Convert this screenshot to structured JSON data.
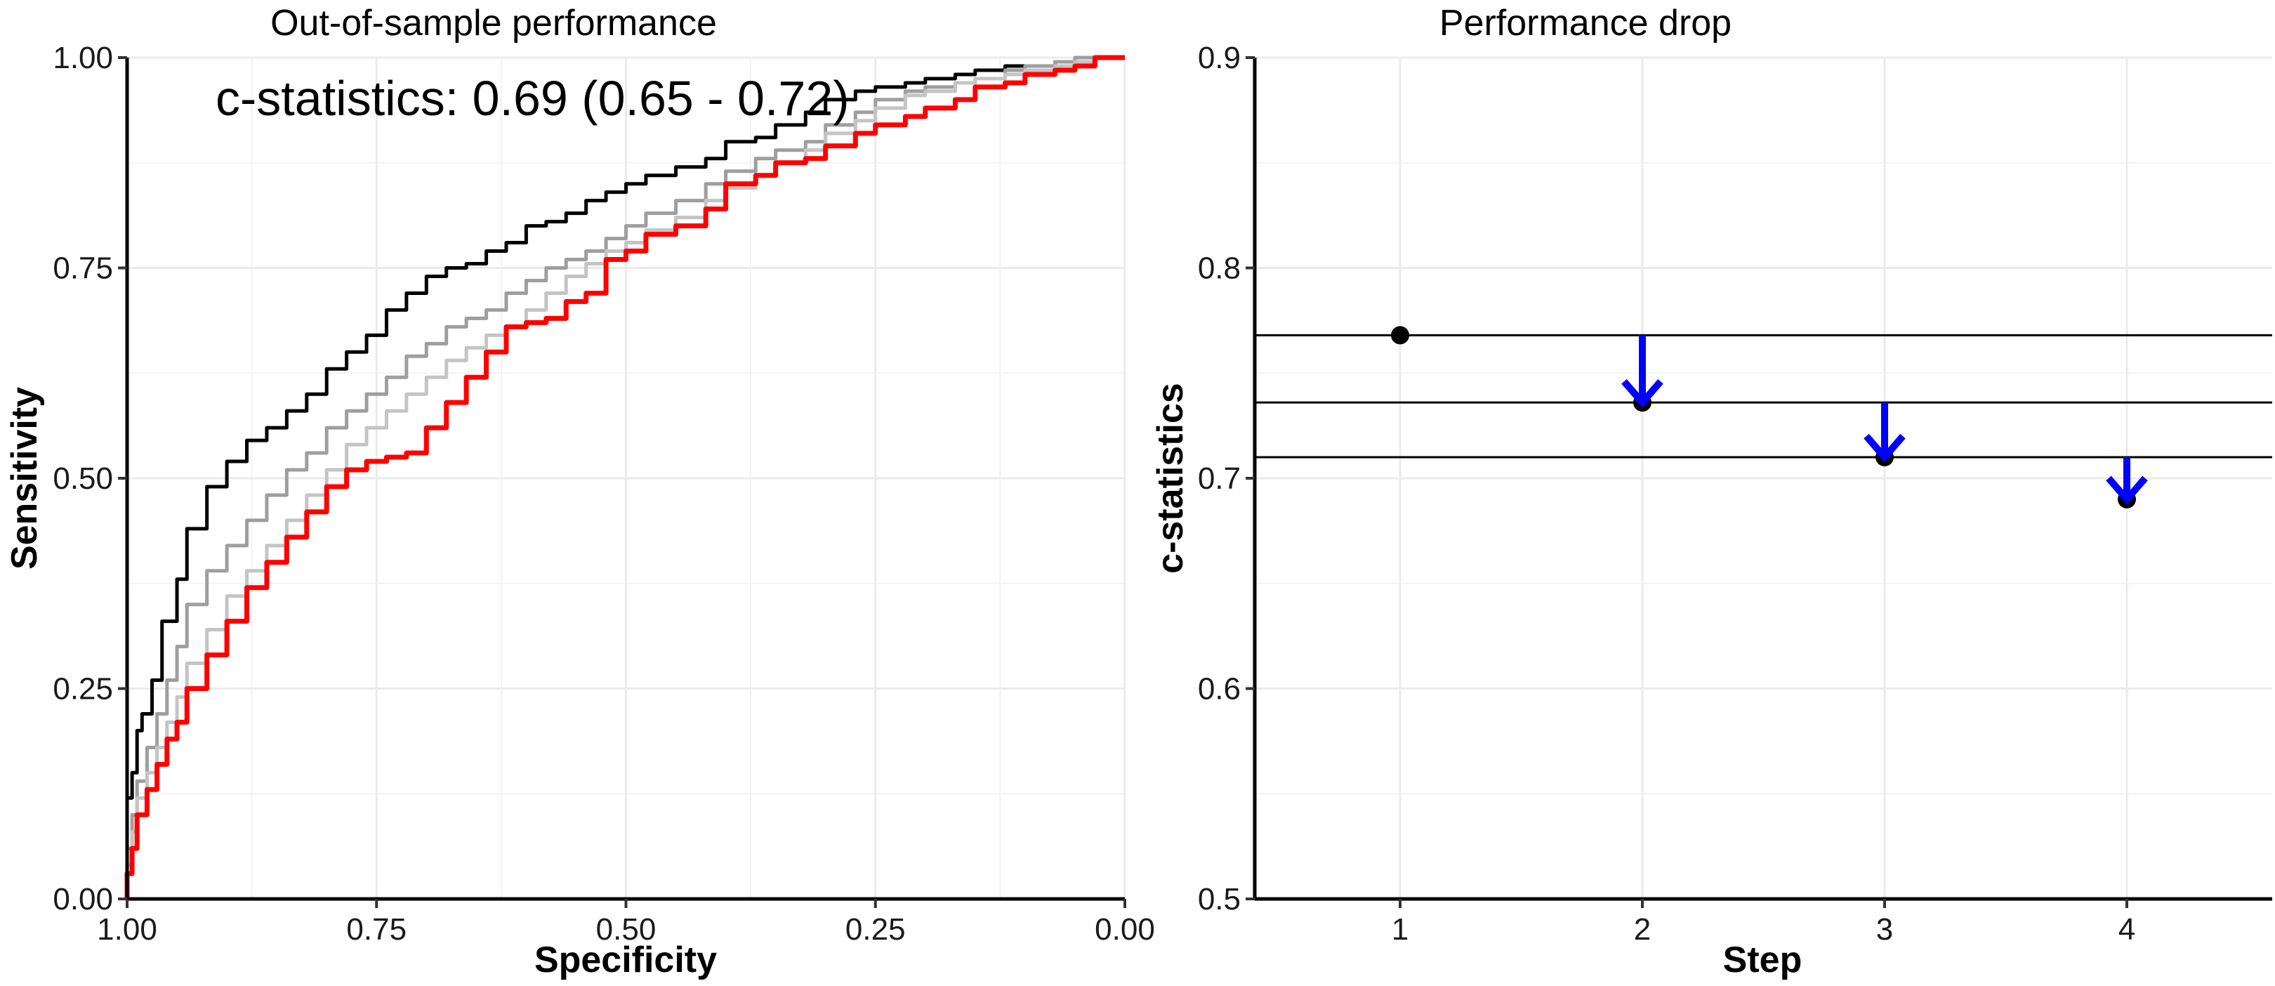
{
  "chart_data": [
    {
      "type": "line",
      "title": "Out-of-sample performance",
      "xlabel": "Specificity",
      "ylabel": "Sensitivity",
      "x_reversed": true,
      "xlim": [
        1.0,
        0.0
      ],
      "ylim": [
        0.0,
        1.0
      ],
      "x_ticks": [
        "1.00",
        "0.75",
        "0.50",
        "0.25",
        "0.00"
      ],
      "y_ticks": [
        "0.00",
        "0.25",
        "0.50",
        "0.75",
        "1.00"
      ],
      "annotation": "c-statistics: 0.69 (0.65 - 0.72)",
      "grid": true,
      "series": [
        {
          "color": "#000000",
          "x": [
            1.0,
            0.995,
            0.99,
            0.985,
            0.975,
            0.965,
            0.95,
            0.94,
            0.92,
            0.9,
            0.88,
            0.86,
            0.84,
            0.82,
            0.8,
            0.78,
            0.76,
            0.74,
            0.72,
            0.7,
            0.68,
            0.66,
            0.64,
            0.62,
            0.6,
            0.58,
            0.56,
            0.54,
            0.52,
            0.5,
            0.48,
            0.45,
            0.42,
            0.4,
            0.37,
            0.35,
            0.32,
            0.3,
            0.27,
            0.25,
            0.22,
            0.2,
            0.17,
            0.15,
            0.12,
            0.1,
            0.07,
            0.05,
            0.03,
            0.0
          ],
          "y": [
            0.0,
            0.12,
            0.15,
            0.2,
            0.22,
            0.26,
            0.33,
            0.38,
            0.44,
            0.49,
            0.52,
            0.545,
            0.56,
            0.58,
            0.6,
            0.63,
            0.65,
            0.67,
            0.7,
            0.72,
            0.74,
            0.75,
            0.755,
            0.77,
            0.78,
            0.8,
            0.805,
            0.815,
            0.83,
            0.84,
            0.85,
            0.86,
            0.87,
            0.88,
            0.9,
            0.905,
            0.92,
            0.935,
            0.95,
            0.96,
            0.965,
            0.97,
            0.975,
            0.98,
            0.985,
            0.99,
            0.99,
            0.995,
            0.995,
            1.0
          ]
        },
        {
          "color": "#9e9e9e",
          "x": [
            1.0,
            0.995,
            0.99,
            0.98,
            0.97,
            0.96,
            0.95,
            0.94,
            0.92,
            0.9,
            0.88,
            0.86,
            0.84,
            0.82,
            0.8,
            0.78,
            0.76,
            0.74,
            0.72,
            0.7,
            0.68,
            0.66,
            0.64,
            0.62,
            0.6,
            0.58,
            0.56,
            0.54,
            0.52,
            0.5,
            0.48,
            0.45,
            0.42,
            0.4,
            0.37,
            0.35,
            0.32,
            0.3,
            0.27,
            0.25,
            0.22,
            0.2,
            0.17,
            0.15,
            0.12,
            0.1,
            0.07,
            0.05,
            0.03,
            0.0
          ],
          "y": [
            0.0,
            0.06,
            0.1,
            0.14,
            0.18,
            0.22,
            0.26,
            0.3,
            0.35,
            0.39,
            0.42,
            0.45,
            0.48,
            0.51,
            0.53,
            0.56,
            0.58,
            0.6,
            0.62,
            0.645,
            0.66,
            0.68,
            0.69,
            0.7,
            0.72,
            0.735,
            0.75,
            0.76,
            0.77,
            0.785,
            0.8,
            0.815,
            0.83,
            0.85,
            0.865,
            0.88,
            0.89,
            0.9,
            0.92,
            0.935,
            0.95,
            0.96,
            0.965,
            0.97,
            0.975,
            0.985,
            0.99,
            0.995,
            1.0,
            1.0
          ]
        },
        {
          "color": "#c4c4c4",
          "x": [
            1.0,
            0.995,
            0.99,
            0.98,
            0.97,
            0.96,
            0.95,
            0.94,
            0.92,
            0.9,
            0.88,
            0.86,
            0.84,
            0.82,
            0.8,
            0.78,
            0.76,
            0.74,
            0.72,
            0.7,
            0.68,
            0.66,
            0.64,
            0.62,
            0.6,
            0.58,
            0.56,
            0.54,
            0.52,
            0.5,
            0.48,
            0.45,
            0.42,
            0.4,
            0.37,
            0.35,
            0.32,
            0.3,
            0.27,
            0.25,
            0.22,
            0.2,
            0.17,
            0.15,
            0.12,
            0.1,
            0.07,
            0.05,
            0.03,
            0.0
          ],
          "y": [
            0.0,
            0.04,
            0.08,
            0.12,
            0.15,
            0.18,
            0.21,
            0.24,
            0.28,
            0.32,
            0.36,
            0.39,
            0.42,
            0.45,
            0.48,
            0.51,
            0.54,
            0.56,
            0.58,
            0.6,
            0.62,
            0.64,
            0.655,
            0.67,
            0.68,
            0.7,
            0.72,
            0.74,
            0.755,
            0.77,
            0.78,
            0.795,
            0.81,
            0.83,
            0.845,
            0.86,
            0.875,
            0.89,
            0.91,
            0.925,
            0.94,
            0.955,
            0.96,
            0.97,
            0.975,
            0.98,
            0.985,
            0.99,
            0.995,
            1.0
          ]
        },
        {
          "color": "#ff0000",
          "x": [
            1.0,
            0.995,
            0.99,
            0.98,
            0.97,
            0.96,
            0.95,
            0.94,
            0.92,
            0.9,
            0.88,
            0.86,
            0.84,
            0.82,
            0.8,
            0.78,
            0.76,
            0.74,
            0.72,
            0.7,
            0.68,
            0.66,
            0.64,
            0.62,
            0.6,
            0.58,
            0.56,
            0.54,
            0.52,
            0.5,
            0.48,
            0.45,
            0.42,
            0.4,
            0.37,
            0.35,
            0.32,
            0.3,
            0.27,
            0.25,
            0.22,
            0.2,
            0.17,
            0.15,
            0.12,
            0.1,
            0.07,
            0.05,
            0.03,
            0.0
          ],
          "y": [
            0.0,
            0.03,
            0.06,
            0.1,
            0.13,
            0.16,
            0.19,
            0.21,
            0.25,
            0.29,
            0.33,
            0.37,
            0.4,
            0.43,
            0.46,
            0.49,
            0.51,
            0.52,
            0.525,
            0.53,
            0.56,
            0.59,
            0.62,
            0.65,
            0.68,
            0.685,
            0.69,
            0.71,
            0.72,
            0.76,
            0.77,
            0.79,
            0.8,
            0.82,
            0.85,
            0.86,
            0.875,
            0.88,
            0.895,
            0.91,
            0.92,
            0.93,
            0.94,
            0.95,
            0.965,
            0.97,
            0.98,
            0.985,
            0.99,
            1.0
          ]
        }
      ]
    },
    {
      "type": "scatter",
      "title": "Performance drop",
      "xlabel": "Step",
      "ylabel": "c-statistics",
      "xlim": [
        0.4,
        4.6
      ],
      "ylim": [
        0.5,
        0.9
      ],
      "x_ticks": [
        "1",
        "2",
        "3",
        "4"
      ],
      "y_ticks": [
        "0.5",
        "0.6",
        "0.7",
        "0.8",
        "0.9"
      ],
      "grid": true,
      "points": {
        "x": [
          1,
          2,
          3,
          4
        ],
        "y": [
          0.768,
          0.736,
          0.71,
          0.69
        ],
        "color": "#000000"
      },
      "reference_lines": [
        0.768,
        0.736,
        0.71
      ],
      "arrows": [
        {
          "x": 2,
          "from": 0.768,
          "to": 0.736,
          "color": "#0000ff"
        },
        {
          "x": 3,
          "from": 0.736,
          "to": 0.71,
          "color": "#0000ff"
        },
        {
          "x": 4,
          "from": 0.71,
          "to": 0.69,
          "color": "#0000ff"
        }
      ]
    }
  ]
}
